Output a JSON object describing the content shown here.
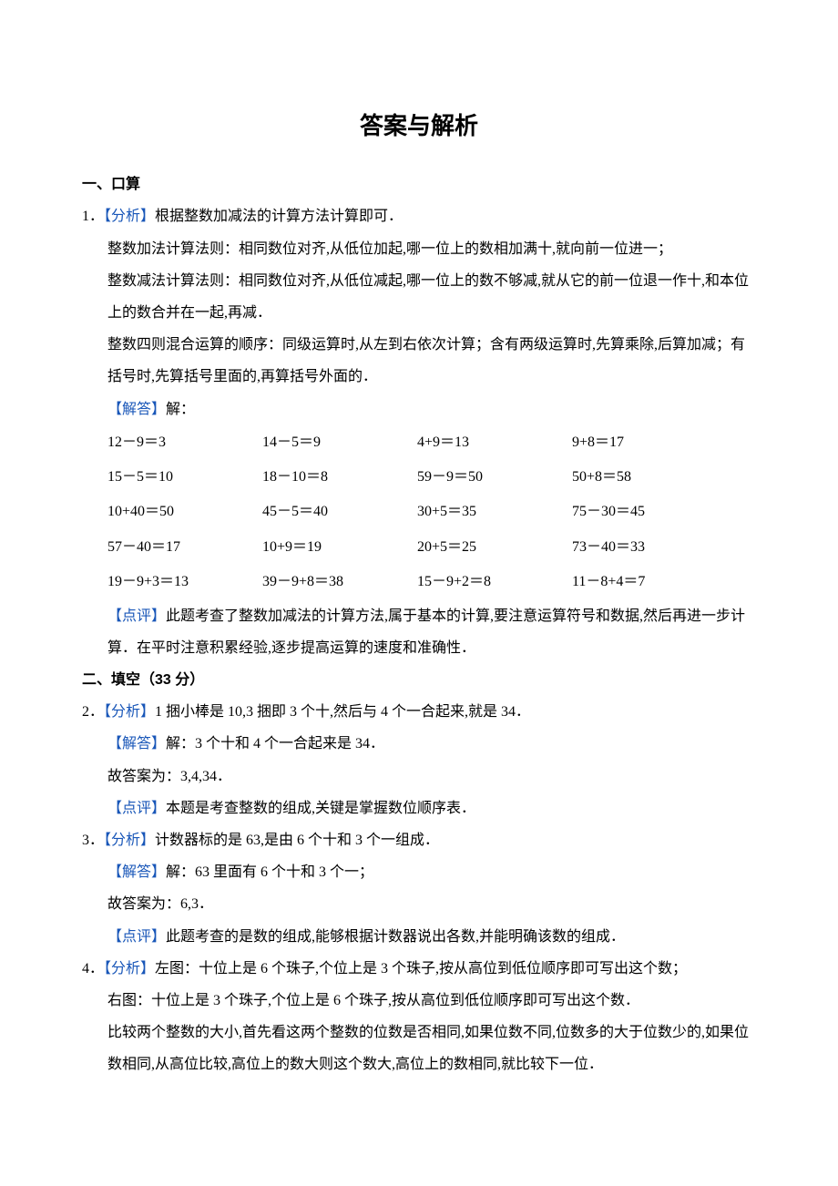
{
  "title": "答案与解析",
  "section1": {
    "heading": "一、口算",
    "q1": {
      "num": "1．",
      "analysis_tag": "【分析】",
      "analysis_l1": "根据整数加减法的计算方法计算即可．",
      "analysis_l2": "整数加法计算法则：相同数位对齐,从低位加起,哪一位上的数相加满十,就向前一位进一；",
      "analysis_l3": "整数减法计算法则：相同数位对齐,从低位减起,哪一位上的数不够减,就从它的前一位退一作十,和本位上的数合并在一起,再减．",
      "analysis_l4": "整数四则混合运算的顺序：同级运算时,从左到右依次计算；含有两级运算时,先算乘除,后算加减；有括号时,先算括号里面的,再算括号外面的．",
      "solve_tag": "【解答】",
      "solve_intro": "解：",
      "grid": [
        [
          "12－9＝3",
          "14－5＝9",
          "4+9＝13",
          "9+8＝17"
        ],
        [
          "15－5＝10",
          "18－10＝8",
          "59－9＝50",
          "50+8＝58"
        ],
        [
          "10+40＝50",
          "45－5＝40",
          "30+5＝35",
          "75－30＝45"
        ],
        [
          "57－40＝17",
          "10+9＝19",
          "20+5＝25",
          "73－40＝33"
        ],
        [
          "19－9+3＝13",
          "39－9+8＝38",
          "15－9+2＝8",
          "11－8+4＝7"
        ]
      ],
      "comment_tag": "【点评】",
      "comment": "此题考查了整数加减法的计算方法,属于基本的计算,要注意运算符号和数据,然后再进一步计算．在平时注意积累经验,逐步提高运算的速度和准确性．"
    }
  },
  "section2": {
    "heading": "二、填空（33 分）",
    "q2": {
      "num": "2．",
      "analysis_tag": "【分析】",
      "analysis": "1 捆小棒是 10,3 捆即 3 个十,然后与 4 个一合起来,就是 34．",
      "solve_tag": "【解答】",
      "solve": "解：3 个十和 4 个一合起来是 34．",
      "answer": "故答案为：3,4,34．",
      "comment_tag": "【点评】",
      "comment": "本题是考查整数的组成,关键是掌握数位顺序表．"
    },
    "q3": {
      "num": "3．",
      "analysis_tag": "【分析】",
      "analysis": "计数器标的是 63,是由 6 个十和 3 个一组成．",
      "solve_tag": "【解答】",
      "solve": "解：63 里面有 6 个十和 3 个一；",
      "answer": "故答案为：6,3．",
      "comment_tag": "【点评】",
      "comment": "此题考查的是数的组成,能够根据计数器说出各数,并能明确该数的组成．"
    },
    "q4": {
      "num": "4．",
      "analysis_tag": "【分析】",
      "analysis_l1": "左图：十位上是 6 个珠子,个位上是 3 个珠子,按从高位到低位顺序即可写出这个数；",
      "analysis_l2": "右图：十位上是 3 个珠子,个位上是 6 个珠子,按从高位到低位顺序即可写出这个数．",
      "analysis_l3": "比较两个整数的大小,首先看这两个整数的位数是否相同,如果位数不同,位数多的大于位数少的,如果位数相同,从高位比较,高位上的数大则这个数大,高位上的数相同,就比较下一位．"
    }
  }
}
